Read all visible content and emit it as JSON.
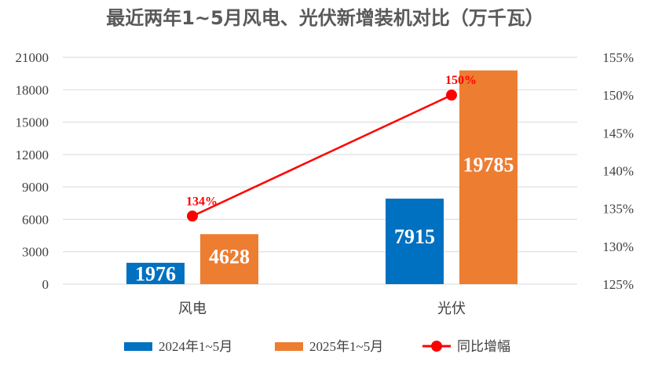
{
  "chart_data": {
    "type": "bar",
    "title": "最近两年1~5月风电、光伏新增装机对比（万千瓦）",
    "categories": [
      "风电",
      "光伏"
    ],
    "series": [
      {
        "name": "2024年1~5月",
        "values": [
          1976,
          7915
        ],
        "color": "#0070c0",
        "axis": "left"
      },
      {
        "name": "2025年1~5月",
        "values": [
          4628,
          19785
        ],
        "color": "#ed7d31",
        "axis": "left"
      }
    ],
    "line_series": {
      "name": "同比增幅",
      "values": [
        134,
        150
      ],
      "labels": [
        "134%",
        "150%"
      ],
      "color": "#ff0000",
      "axis": "right"
    },
    "left_axis": {
      "ylim": [
        0,
        21000
      ],
      "ticks": [
        "0",
        "3000",
        "6000",
        "9000",
        "12000",
        "15000",
        "18000",
        "21000"
      ]
    },
    "right_axis": {
      "ylim": [
        125,
        155
      ],
      "ticks": [
        "125%",
        "130%",
        "135%",
        "140%",
        "145%",
        "150%",
        "155%"
      ]
    },
    "grid": true,
    "legend": "bottom"
  }
}
